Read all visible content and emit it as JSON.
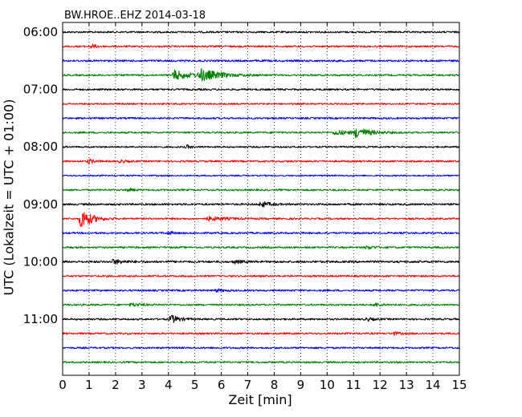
{
  "chart_data": {
    "type": "line",
    "title": "BW.HROE..EHZ 2014-03-18",
    "xlabel": "Zeit  [min]",
    "ylabel": "UTC (Lokalzeit = UTC + 01:00)",
    "xlim": [
      0,
      15
    ],
    "x_ticks": [
      "0",
      "1",
      "2",
      "3",
      "4",
      "5",
      "6",
      "7",
      "8",
      "9",
      "10",
      "11",
      "12",
      "13",
      "14",
      "15"
    ],
    "y_tick_labels": [
      "06:00",
      "07:00",
      "08:00",
      "09:00",
      "10:00",
      "11:00"
    ],
    "grid": "vertical dotted",
    "colors": [
      "#000000",
      "#ff0000",
      "#0000ff",
      "#008000"
    ],
    "traces": [
      {
        "start": "06:00",
        "color": "#000000",
        "noise": 1.0,
        "events": []
      },
      {
        "start": "06:15",
        "color": "#ff0000",
        "noise": 1.0,
        "events": [
          {
            "t": 1.1,
            "amp": 2.5,
            "dur": 0.3
          }
        ]
      },
      {
        "start": "06:30",
        "color": "#0000ff",
        "noise": 1.1,
        "events": []
      },
      {
        "start": "06:45",
        "color": "#008000",
        "noise": 1.0,
        "events": [
          {
            "t": 4.2,
            "amp": 6,
            "dur": 1.0
          },
          {
            "t": 5.2,
            "amp": 7,
            "dur": 1.2
          }
        ]
      },
      {
        "start": "07:00",
        "color": "#000000",
        "noise": 1.0,
        "events": []
      },
      {
        "start": "07:15",
        "color": "#ff0000",
        "noise": 0.9,
        "events": []
      },
      {
        "start": "07:30",
        "color": "#0000ff",
        "noise": 1.0,
        "events": []
      },
      {
        "start": "07:45",
        "color": "#008000",
        "noise": 1.0,
        "events": [
          {
            "t": 10.3,
            "amp": 3,
            "dur": 1.0
          },
          {
            "t": 11.1,
            "amp": 6,
            "dur": 0.8
          }
        ]
      },
      {
        "start": "08:00",
        "color": "#000000",
        "noise": 0.9,
        "events": [
          {
            "t": 4.7,
            "amp": 2,
            "dur": 0.3
          }
        ]
      },
      {
        "start": "08:15",
        "color": "#ff0000",
        "noise": 1.0,
        "events": [
          {
            "t": 1.0,
            "amp": 3,
            "dur": 0.3
          },
          {
            "t": 2.2,
            "amp": 1.8,
            "dur": 0.3
          }
        ]
      },
      {
        "start": "08:30",
        "color": "#0000ff",
        "noise": 0.8,
        "events": []
      },
      {
        "start": "08:45",
        "color": "#008000",
        "noise": 1.0,
        "events": [
          {
            "t": 2.5,
            "amp": 2,
            "dur": 0.3
          }
        ]
      },
      {
        "start": "09:00",
        "color": "#000000",
        "noise": 1.1,
        "events": [
          {
            "t": 7.5,
            "amp": 3.5,
            "dur": 0.5
          }
        ]
      },
      {
        "start": "09:15",
        "color": "#ff0000",
        "noise": 1.0,
        "events": [
          {
            "t": 0.7,
            "amp": 13,
            "dur": 0.6
          },
          {
            "t": 5.5,
            "amp": 2.5,
            "dur": 1.0
          }
        ]
      },
      {
        "start": "09:30",
        "color": "#0000ff",
        "noise": 1.0,
        "events": [
          {
            "t": 4.0,
            "amp": 2,
            "dur": 0.3
          }
        ]
      },
      {
        "start": "09:45",
        "color": "#008000",
        "noise": 1.0,
        "events": [
          {
            "t": 11.5,
            "amp": 2,
            "dur": 0.5
          }
        ]
      },
      {
        "start": "10:00",
        "color": "#000000",
        "noise": 1.2,
        "events": [
          {
            "t": 1.9,
            "amp": 2.5,
            "dur": 0.7
          },
          {
            "t": 6.5,
            "amp": 2,
            "dur": 0.4
          }
        ]
      },
      {
        "start": "10:15",
        "color": "#ff0000",
        "noise": 1.0,
        "events": []
      },
      {
        "start": "10:30",
        "color": "#0000ff",
        "noise": 1.0,
        "events": [
          {
            "t": 5.8,
            "amp": 1.5,
            "dur": 0.5
          }
        ]
      },
      {
        "start": "10:45",
        "color": "#008000",
        "noise": 1.0,
        "events": [
          {
            "t": 2.6,
            "amp": 2,
            "dur": 0.6
          },
          {
            "t": 11.8,
            "amp": 2,
            "dur": 0.5
          }
        ]
      },
      {
        "start": "11:00",
        "color": "#000000",
        "noise": 1.0,
        "events": [
          {
            "t": 4.1,
            "amp": 5,
            "dur": 0.5
          },
          {
            "t": 11.5,
            "amp": 2,
            "dur": 0.4
          }
        ]
      },
      {
        "start": "11:15",
        "color": "#ff0000",
        "noise": 1.0,
        "events": [
          {
            "t": 12.5,
            "amp": 2,
            "dur": 0.4
          }
        ]
      },
      {
        "start": "11:30",
        "color": "#0000ff",
        "noise": 1.0,
        "events": []
      },
      {
        "start": "11:45",
        "color": "#008000",
        "noise": 1.0,
        "events": []
      }
    ]
  }
}
